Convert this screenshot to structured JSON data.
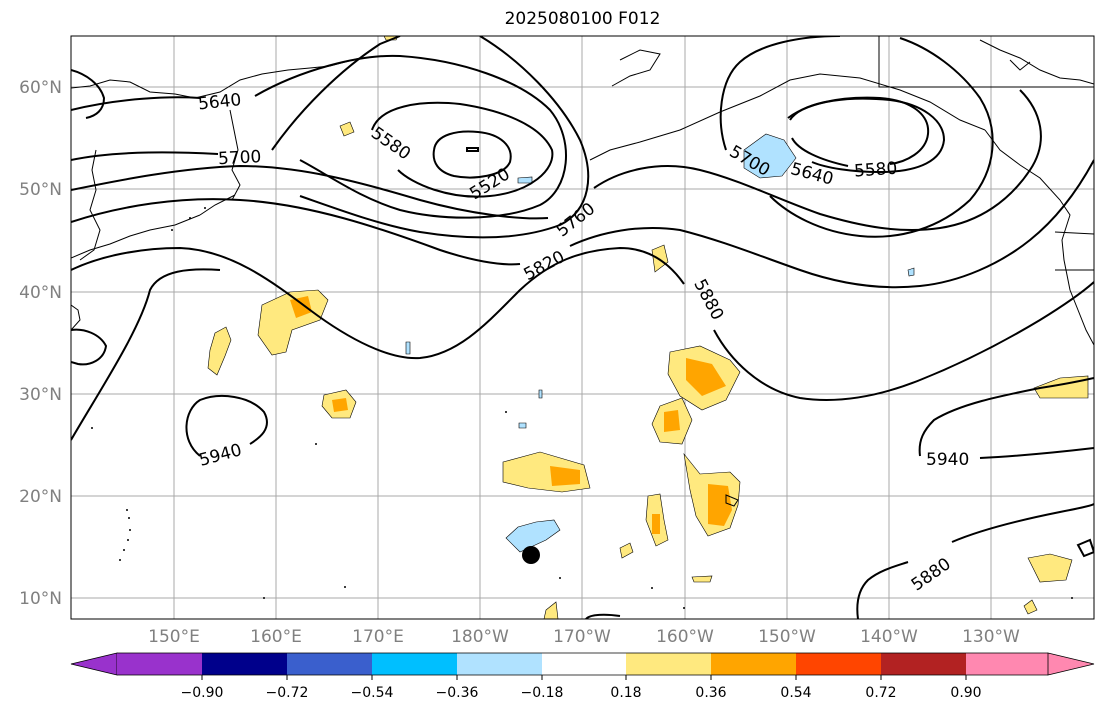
{
  "title": "2025080100 F012",
  "lat_ticks": [
    "60°N",
    "50°N",
    "40°N",
    "30°N",
    "20°N",
    "10°N"
  ],
  "lon_ticks": [
    "150°E",
    "160°E",
    "170°E",
    "180°W",
    "170°W",
    "160°W",
    "150°W",
    "140°W",
    "130°W"
  ],
  "contour_labels": [
    "5640",
    "5700",
    "5580",
    "5520",
    "5760",
    "5820",
    "5880",
    "5700",
    "5640",
    "5580",
    "5940",
    "5940",
    "5880"
  ],
  "colorbar": {
    "labels": [
      "−0.90",
      "−0.72",
      "−0.54",
      "−0.36",
      "−0.18",
      "0.18",
      "0.36",
      "0.54",
      "0.72",
      "0.90"
    ],
    "colors": [
      "#9932cc",
      "#00008b",
      "#3a5fcd",
      "#00bfff",
      "#b0e2ff",
      "#ffffff",
      "#ffe97f",
      "#ffa500",
      "#ff4500",
      "#b22222",
      "#ff88b0"
    ]
  }
}
